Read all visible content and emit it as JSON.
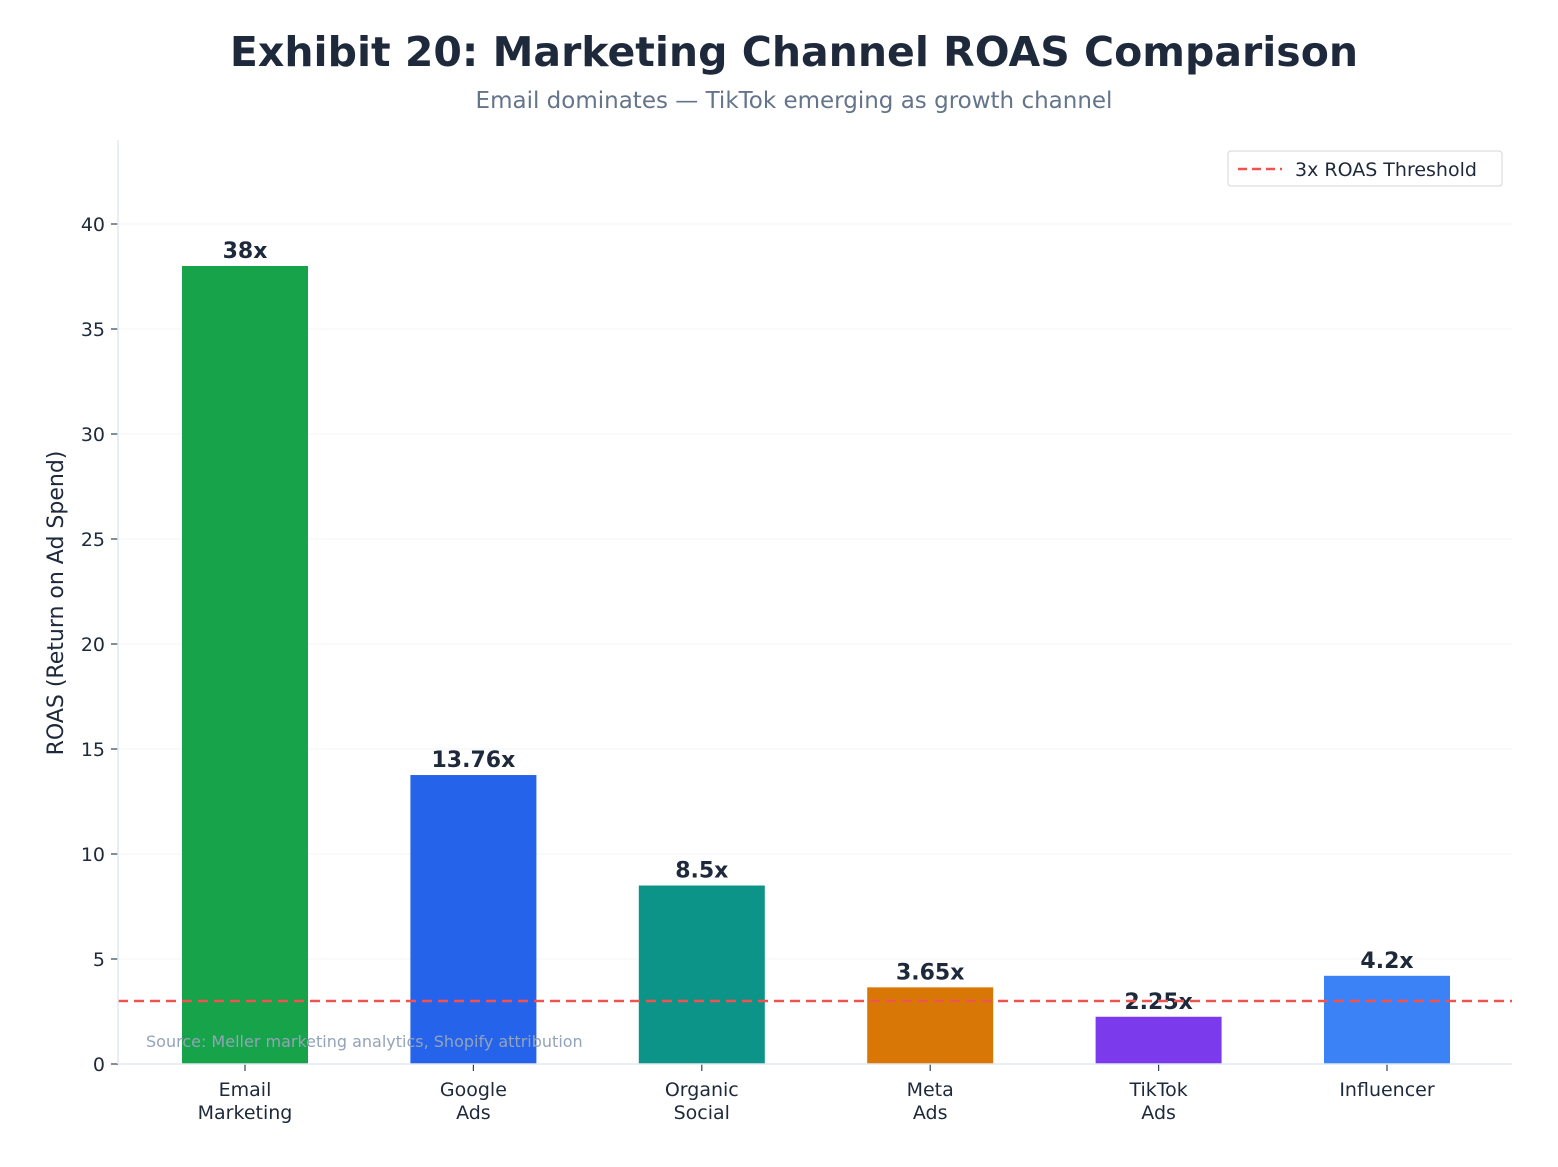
{
  "chart_data": {
    "type": "bar",
    "title": "Exhibit 20: Marketing Channel ROAS Comparison",
    "subtitle": "Email dominates — TikTok emerging as growth channel",
    "ylabel": "ROAS (Return on Ad Spend)",
    "xlabel": "",
    "categories": [
      [
        "Email",
        "Marketing"
      ],
      [
        "Google",
        "Ads"
      ],
      [
        "Organic",
        "Social"
      ],
      [
        "Meta",
        "Ads"
      ],
      [
        "TikTok",
        "Ads"
      ],
      [
        "Influencer"
      ]
    ],
    "values": [
      38,
      13.76,
      8.5,
      3.65,
      2.25,
      4.2
    ],
    "data_labels": [
      "38x",
      "13.76x",
      "8.5x",
      "3.65x",
      "2.25x",
      "4.2x"
    ],
    "colors": [
      "#16a34a",
      "#2563eb",
      "#0d9488",
      "#d97706",
      "#7c3aed",
      "#3b82f6"
    ],
    "ylim": [
      0,
      44
    ],
    "yticks": [
      0,
      5,
      10,
      15,
      20,
      25,
      30,
      35,
      40
    ],
    "grid": "horizontal",
    "threshold": {
      "value": 3,
      "label": "3x ROAS Threshold",
      "color": "#ef5350",
      "style": "dashed"
    },
    "legend_position": "top-right",
    "source": "Source: Meller marketing analytics, Shopify attribution"
  }
}
